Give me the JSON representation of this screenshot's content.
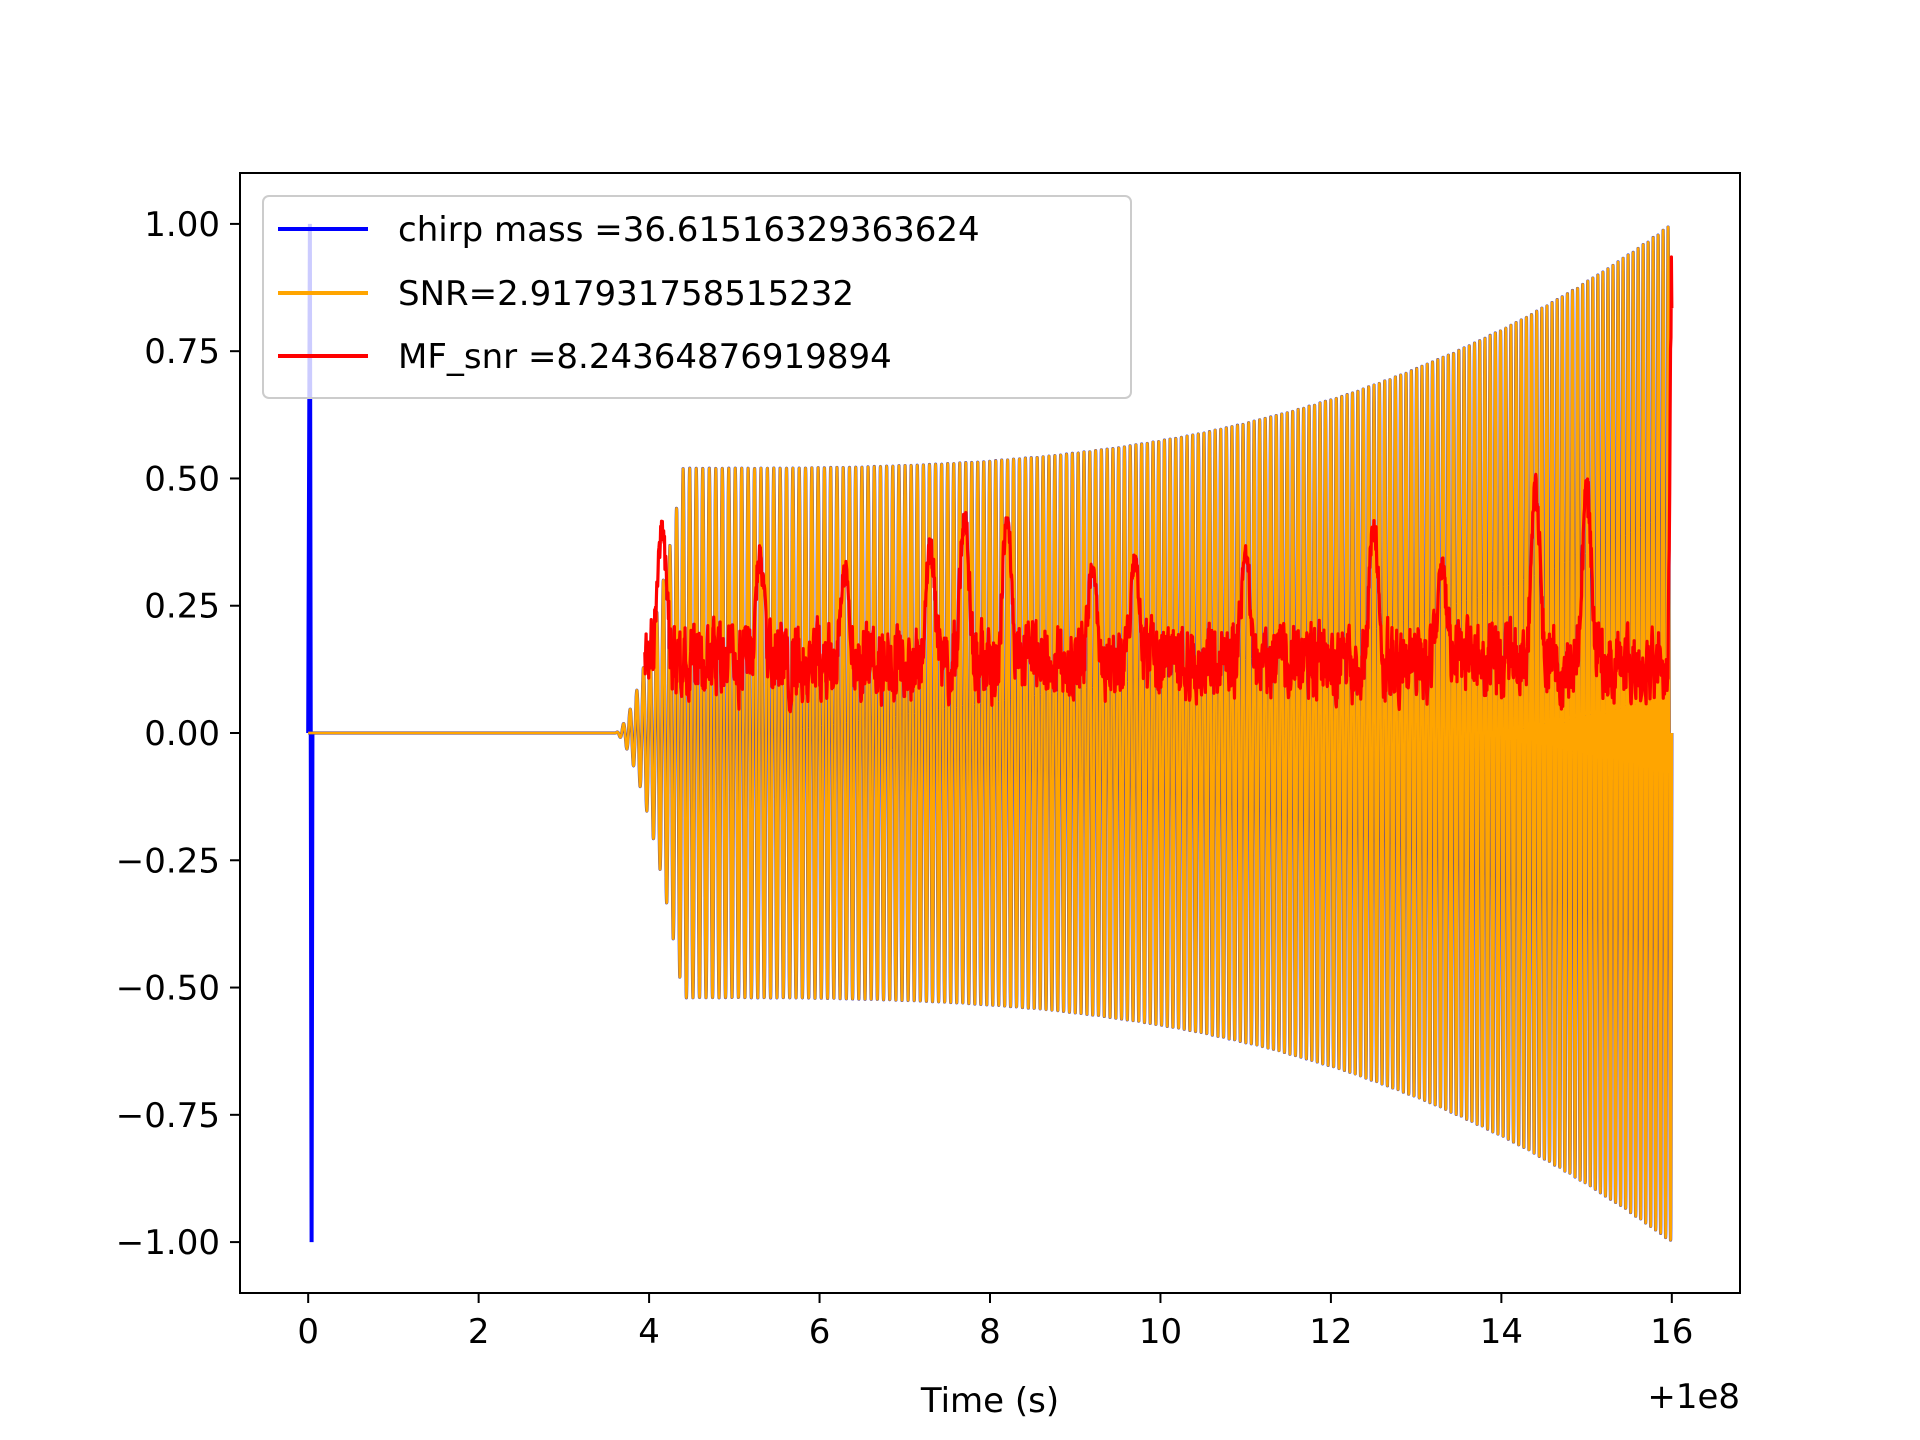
{
  "chart_data": {
    "type": "line",
    "title": "",
    "xlabel": "Time (s)",
    "ylabel": "",
    "x_offset_label": "+1e8",
    "xlim": [
      -0.8,
      16.8
    ],
    "ylim": [
      -1.1,
      1.1
    ],
    "xticks": [
      0,
      2,
      4,
      6,
      8,
      10,
      12,
      14,
      16
    ],
    "xtick_labels": [
      "0",
      "2",
      "4",
      "6",
      "8",
      "10",
      "12",
      "14",
      "16"
    ],
    "yticks": [
      1.0,
      0.75,
      0.5,
      0.25,
      0.0,
      -0.25,
      -0.5,
      -0.75,
      -1.0
    ],
    "ytick_labels": [
      "1.00",
      "0.75",
      "0.50",
      "0.25",
      "0.00",
      "−0.25",
      "−0.50",
      "−0.75",
      "−1.00"
    ],
    "grid": false,
    "legend_position": "top-left",
    "series": [
      {
        "name": "chirp mass =36.61516329363624",
        "color": "#0000ff",
        "description_type": "spike",
        "x": [
          0.0,
          0.02,
          0.04,
          0.05
        ],
        "y": [
          0.0,
          1.0,
          -1.0,
          0.0
        ]
      },
      {
        "name": "SNR=2.917931758515232",
        "color": "#ffa500",
        "description_type": "chirp",
        "x_start": 0.0,
        "x_signal_start": 3.6,
        "x_plateau_start": 4.4,
        "x_end": 16.0,
        "plateau_amplitude": 0.52,
        "end_amplitude": 1.0,
        "cycles": 185
      },
      {
        "name": "MF_snr =8.24364876919894",
        "color": "#ff0000",
        "description_type": "noise",
        "x_start": 3.95,
        "x_end": 16.0,
        "peaks": [
          {
            "x": 4.15,
            "y": 0.42
          },
          {
            "x": 5.3,
            "y": 0.37
          },
          {
            "x": 6.3,
            "y": 0.34
          },
          {
            "x": 7.3,
            "y": 0.39
          },
          {
            "x": 7.7,
            "y": 0.45
          },
          {
            "x": 8.2,
            "y": 0.44
          },
          {
            "x": 9.2,
            "y": 0.34
          },
          {
            "x": 9.7,
            "y": 0.37
          },
          {
            "x": 11.0,
            "y": 0.37
          },
          {
            "x": 12.5,
            "y": 0.44
          },
          {
            "x": 13.3,
            "y": 0.35
          },
          {
            "x": 14.4,
            "y": 0.51
          },
          {
            "x": 15.0,
            "y": 0.52
          },
          {
            "x": 16.0,
            "y": 1.0
          }
        ],
        "base_level": 0.14
      }
    ]
  }
}
